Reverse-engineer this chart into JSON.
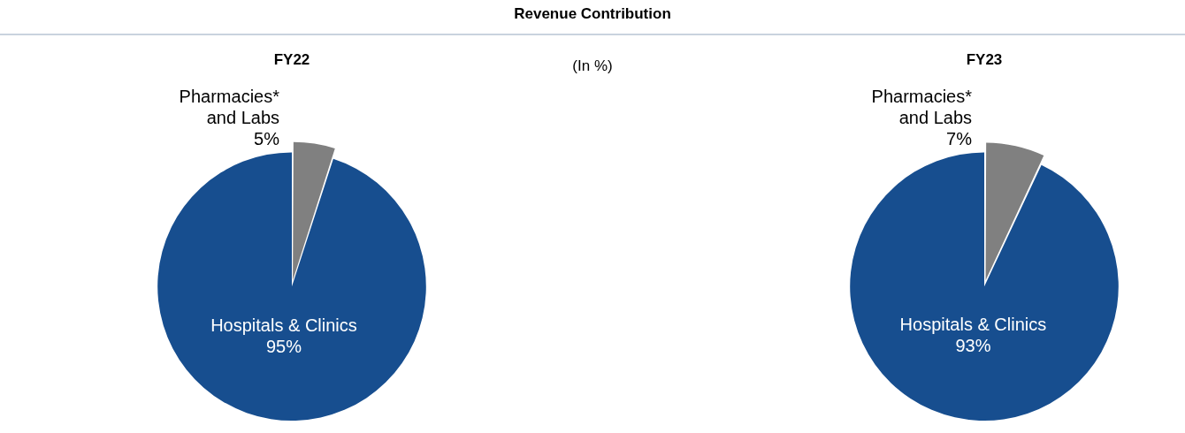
{
  "chart_data": [
    {
      "type": "pie",
      "title": "FY22",
      "annotations": [
        "Revenue Contribution",
        "(In %)"
      ],
      "categories": [
        "Pharmacies* and Labs",
        "Hospitals & Clinics"
      ],
      "values": [
        5,
        95
      ],
      "value_labels": [
        "5%",
        "95%"
      ],
      "colors": [
        "#808080",
        "#174e8f"
      ]
    },
    {
      "type": "pie",
      "title": "FY23",
      "categories": [
        "Pharmacies* and Labs",
        "Hospitals & Clinics"
      ],
      "values": [
        7,
        93
      ],
      "value_labels": [
        "7%",
        "93%"
      ],
      "colors": [
        "#808080",
        "#174e8f"
      ]
    }
  ]
}
